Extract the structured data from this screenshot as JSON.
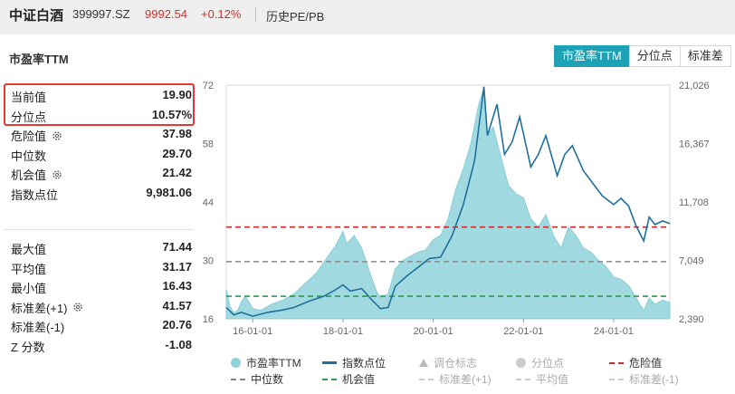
{
  "header": {
    "name": "中证白酒",
    "code": "399997.SZ",
    "price": "9992.54",
    "change": "+0.12%",
    "history_link": "历史PE/PB"
  },
  "section_title": "市盈率TTM",
  "tabs": [
    {
      "label": "市盈率TTM",
      "active": true
    },
    {
      "label": "分位点",
      "active": false
    },
    {
      "label": "标准差",
      "active": false
    }
  ],
  "stats_top": [
    {
      "label": "当前值",
      "value": "19.90"
    },
    {
      "label": "分位点",
      "value": "10.57%"
    },
    {
      "label": "危险值",
      "value": "37.98",
      "gear": true
    },
    {
      "label": "中位数",
      "value": "29.70"
    },
    {
      "label": "机会值",
      "value": "21.42",
      "gear": true
    },
    {
      "label": "指数点位",
      "value": "9,981.06"
    }
  ],
  "stats_bottom": [
    {
      "label": "最大值",
      "value": "71.44"
    },
    {
      "label": "平均值",
      "value": "31.17"
    },
    {
      "label": "最小值",
      "value": "16.43"
    },
    {
      "label": "标准差(+1)",
      "value": "41.57",
      "gear": true
    },
    {
      "label": "标准差(-1)",
      "value": "20.76"
    },
    {
      "label": "Z 分数",
      "value": "-1.08"
    }
  ],
  "colors": {
    "accent": "#1ea1b5",
    "pe_fill": "#8fd3da",
    "index_line": "#1f6f9c",
    "danger": "#cc2a2a",
    "median": "#888888",
    "opportunity": "#2b9a4a",
    "price_red": "#d0312d"
  },
  "chart_data": {
    "type": "area",
    "x_ticks": [
      "16-01-01",
      "18-01-01",
      "20-01-01",
      "22-01-01",
      "24-01-01"
    ],
    "x_start": "2015-06-01",
    "x_end": "2025-03-31",
    "y_left_ticks": [
      "72",
      "58",
      "44",
      "30",
      "16"
    ],
    "y_left_range": [
      16,
      72
    ],
    "y_right_ticks": [
      "21,026",
      "16,367",
      "11,708",
      "7,049",
      "2,390"
    ],
    "y_right_range": [
      2390,
      21026
    ],
    "reference_lines": [
      {
        "name": "危险值",
        "value": 37.98,
        "color": "#cc2a2a"
      },
      {
        "name": "中位数",
        "value": 29.7,
        "color": "#888888"
      },
      {
        "name": "机会值",
        "value": 21.42,
        "color": "#2b9a4a"
      }
    ],
    "series": [
      {
        "name": "市盈率TTM",
        "axis": "left",
        "style": "area",
        "points": [
          [
            "2015-06-01",
            23
          ],
          [
            "2015-07-01",
            19
          ],
          [
            "2015-08-01",
            17.5
          ],
          [
            "2015-09-01",
            18
          ],
          [
            "2015-10-01",
            20
          ],
          [
            "2015-11-01",
            21.5
          ],
          [
            "2016-01-01",
            18.5
          ],
          [
            "2016-03-01",
            18
          ],
          [
            "2016-06-01",
            19.5
          ],
          [
            "2016-09-01",
            20.5
          ],
          [
            "2016-12-01",
            22
          ],
          [
            "2017-03-01",
            24.5
          ],
          [
            "2017-06-01",
            27
          ],
          [
            "2017-09-01",
            31
          ],
          [
            "2017-11-01",
            33.5
          ],
          [
            "2018-01-01",
            37
          ],
          [
            "2018-02-01",
            34
          ],
          [
            "2018-04-01",
            36
          ],
          [
            "2018-06-01",
            33
          ],
          [
            "2018-08-01",
            27.5
          ],
          [
            "2018-10-01",
            22.5
          ],
          [
            "2018-11-01",
            21
          ],
          [
            "2019-01-01",
            22
          ],
          [
            "2019-03-01",
            28
          ],
          [
            "2019-05-01",
            30
          ],
          [
            "2019-07-01",
            31
          ],
          [
            "2019-09-01",
            32
          ],
          [
            "2019-11-01",
            32.5
          ],
          [
            "2020-01-01",
            35
          ],
          [
            "2020-03-01",
            36
          ],
          [
            "2020-05-01",
            40
          ],
          [
            "2020-07-01",
            47
          ],
          [
            "2020-09-01",
            52
          ],
          [
            "2020-11-01",
            58
          ],
          [
            "2021-01-01",
            67
          ],
          [
            "2021-02-15",
            71.4
          ],
          [
            "2021-03-15",
            60
          ],
          [
            "2021-05-01",
            62
          ],
          [
            "2021-07-01",
            55
          ],
          [
            "2021-09-01",
            48
          ],
          [
            "2021-11-01",
            46
          ],
          [
            "2022-01-01",
            45
          ],
          [
            "2022-03-01",
            40
          ],
          [
            "2022-05-01",
            38
          ],
          [
            "2022-07-01",
            41
          ],
          [
            "2022-09-01",
            36
          ],
          [
            "2022-11-01",
            33
          ],
          [
            "2023-01-01",
            38
          ],
          [
            "2023-03-01",
            36
          ],
          [
            "2023-05-01",
            33
          ],
          [
            "2023-07-01",
            32
          ],
          [
            "2023-09-01",
            30
          ],
          [
            "2023-11-01",
            28.5
          ],
          [
            "2024-01-01",
            26
          ],
          [
            "2024-03-01",
            25.5
          ],
          [
            "2024-05-01",
            24
          ],
          [
            "2024-07-01",
            21
          ],
          [
            "2024-09-01",
            18
          ],
          [
            "2024-10-15",
            21
          ],
          [
            "2024-12-01",
            19.5
          ],
          [
            "2025-02-01",
            20.5
          ],
          [
            "2025-03-31",
            19.9
          ]
        ]
      },
      {
        "name": "指数点位",
        "axis": "right",
        "style": "line",
        "points": [
          [
            "2015-06-01",
            3300
          ],
          [
            "2015-08-01",
            2700
          ],
          [
            "2015-10-01",
            2900
          ],
          [
            "2016-01-01",
            2600
          ],
          [
            "2016-05-01",
            2900
          ],
          [
            "2016-09-01",
            3100
          ],
          [
            "2016-12-01",
            3300
          ],
          [
            "2017-04-01",
            3800
          ],
          [
            "2017-08-01",
            4200
          ],
          [
            "2017-11-01",
            4700
          ],
          [
            "2018-01-01",
            5100
          ],
          [
            "2018-03-01",
            4600
          ],
          [
            "2018-06-01",
            4800
          ],
          [
            "2018-09-01",
            3800
          ],
          [
            "2018-11-01",
            3200
          ],
          [
            "2019-01-01",
            3300
          ],
          [
            "2019-03-01",
            5000
          ],
          [
            "2019-06-01",
            5800
          ],
          [
            "2019-09-01",
            6500
          ],
          [
            "2019-12-01",
            7200
          ],
          [
            "2020-03-01",
            7300
          ],
          [
            "2020-06-01",
            9000
          ],
          [
            "2020-09-01",
            11500
          ],
          [
            "2020-12-01",
            15000
          ],
          [
            "2021-02-15",
            20900
          ],
          [
            "2021-03-15",
            17000
          ],
          [
            "2021-06-01",
            19500
          ],
          [
            "2021-08-01",
            15500
          ],
          [
            "2021-10-01",
            16500
          ],
          [
            "2021-12-01",
            18500
          ],
          [
            "2022-03-01",
            14500
          ],
          [
            "2022-05-01",
            15500
          ],
          [
            "2022-07-01",
            17000
          ],
          [
            "2022-10-01",
            13800
          ],
          [
            "2022-12-01",
            15500
          ],
          [
            "2023-02-01",
            16200
          ],
          [
            "2023-05-01",
            14200
          ],
          [
            "2023-08-01",
            13000
          ],
          [
            "2023-10-01",
            12200
          ],
          [
            "2024-01-01",
            11500
          ],
          [
            "2024-03-01",
            12000
          ],
          [
            "2024-05-01",
            11400
          ],
          [
            "2024-07-01",
            9800
          ],
          [
            "2024-09-01",
            8600
          ],
          [
            "2024-10-15",
            10500
          ],
          [
            "2024-12-01",
            9900
          ],
          [
            "2025-02-01",
            10200
          ],
          [
            "2025-03-31",
            9981
          ]
        ]
      }
    ]
  },
  "legend": [
    {
      "label": "市盈率TTM",
      "mark": "dot",
      "color": "#8fd3da",
      "dim": false
    },
    {
      "label": "指数点位",
      "mark": "line",
      "color": "#1f6f9c",
      "dim": false
    },
    {
      "label": "调仓标志",
      "mark": "triangle",
      "color": "#bbbbbb",
      "dim": true
    },
    {
      "label": "分位点",
      "mark": "dot",
      "color": "#cccccc",
      "dim": true
    },
    {
      "label": "危险值",
      "mark": "dash",
      "color": "#cc2a2a",
      "dim": false
    },
    {
      "label": "中位数",
      "mark": "dash",
      "color": "#888888",
      "dim": false
    },
    {
      "label": "机会值",
      "mark": "dash",
      "color": "#2b9a4a",
      "dim": false
    },
    {
      "label": "标准差(+1)",
      "mark": "dash",
      "color": "#cccccc",
      "dim": true
    },
    {
      "label": "平均值",
      "mark": "dash",
      "color": "#cccccc",
      "dim": true
    },
    {
      "label": "标准差(-1)",
      "mark": "dash",
      "color": "#cccccc",
      "dim": true
    }
  ]
}
